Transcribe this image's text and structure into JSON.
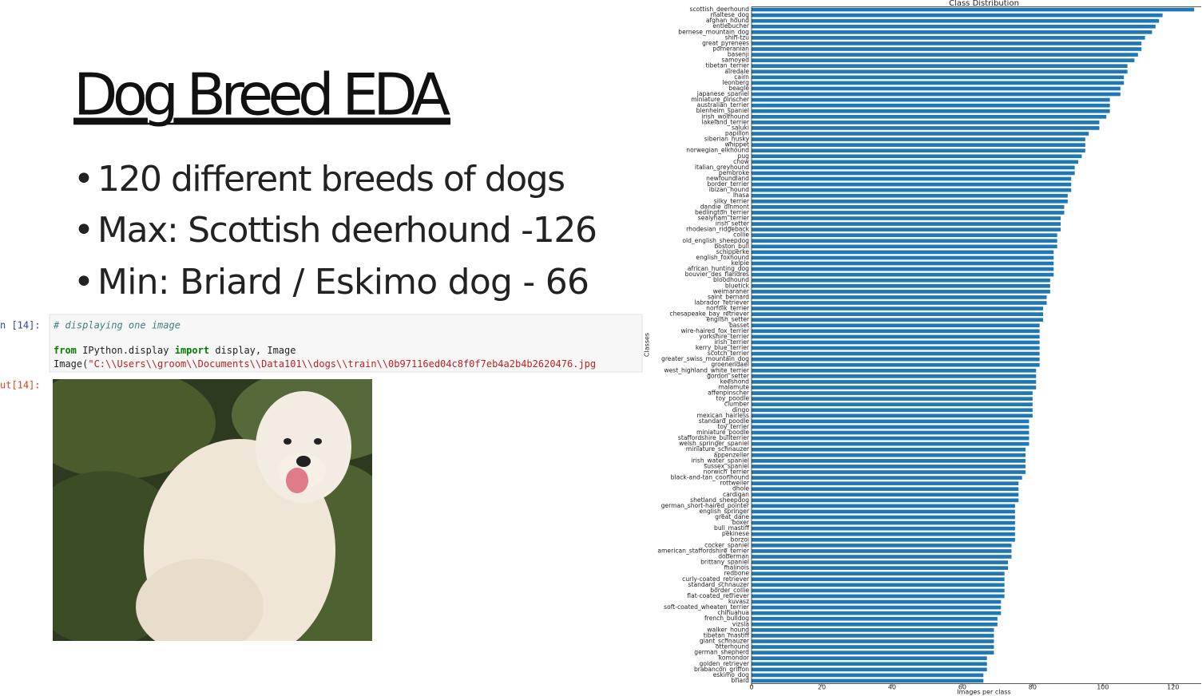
{
  "slide": {
    "title": "Dog Breed EDA",
    "bullets": [
      "120 different breeds of dogs",
      "Max: Scottish deerhound -126",
      "Min: Briard / Eskimo dog - 66"
    ]
  },
  "notebook": {
    "in_prompt": "n [14]:",
    "out_prompt": "ut[14]:",
    "comment": "# displaying one image",
    "line1": [
      "from",
      " IPython.display ",
      "import",
      " display, Image"
    ],
    "line2": [
      "Image(",
      "\"C:\\\\Users\\\\groom\\\\Documents\\\\Data101\\\\dogs\\\\train\\\\0b97116ed04c8f0f7eb4a2b4b2620476.jpg"
    ]
  },
  "chart_data": {
    "type": "barh",
    "title": "Class Distribution",
    "x_label": "Images per class",
    "y_label": "Classes",
    "color": "#1f77b4",
    "xlim": [
      0,
      128
    ],
    "xticks": [
      0,
      20,
      40,
      60,
      80,
      100,
      120
    ],
    "grid": false,
    "categories": [
      "scottish_deerhound",
      "maltese_dog",
      "afghan_hound",
      "entlebucher",
      "bernese_mountain_dog",
      "shih-tzu",
      "great_pyrenees",
      "pomeranian",
      "basenji",
      "samoyed",
      "tibetan_terrier",
      "airedale",
      "cairn",
      "leonberg",
      "beagle",
      "japanese_spaniel",
      "miniature_pinscher",
      "australian_terrier",
      "blenheim_spaniel",
      "irish_wolfhound",
      "lakeland_terrier",
      "saluki",
      "papillon",
      "siberian_husky",
      "whippet",
      "norwegian_elkhound",
      "pug",
      "chow",
      "italian_greyhound",
      "pembroke",
      "newfoundland",
      "border_terrier",
      "ibizan_hound",
      "lhasa",
      "silky_terrier",
      "dandie_dinmont",
      "bedlington_terrier",
      "sealyham_terrier",
      "irish_setter",
      "rhodesian_ridgeback",
      "collie",
      "old_english_sheepdog",
      "boston_bull",
      "schipperke",
      "english_foxhound",
      "kelpie",
      "african_hunting_dog",
      "bouvier_des_flandres",
      "bloodhound",
      "bluetick",
      "weimaraner",
      "saint_bernard",
      "labrador_retriever",
      "norfolk_terrier",
      "chesapeake_bay_retriever",
      "english_setter",
      "basset",
      "wire-haired_fox_terrier",
      "yorkshire_terrier",
      "irish_terrier",
      "kerry_blue_terrier",
      "scotch_terrier",
      "greater_swiss_mountain_dog",
      "groenendael",
      "west_highland_white_terrier",
      "gordon_setter",
      "keeshond",
      "malamute",
      "affenpinscher",
      "toy_poodle",
      "clumber",
      "dingo",
      "mexican_hairless",
      "standard_poodle",
      "toy_terrier",
      "miniature_poodle",
      "staffordshire_bullterrier",
      "welsh_springer_spaniel",
      "miniature_schnauzer",
      "appenzeller",
      "irish_water_spaniel",
      "sussex_spaniel",
      "norwich_terrier",
      "black-and-tan_coonhound",
      "rottweiler",
      "dhole",
      "cardigan",
      "shetland_sheepdog",
      "german_short-haired_pointer",
      "english_springer",
      "great_dane",
      "boxer",
      "bull_mastiff",
      "pekinese",
      "borzoi",
      "cocker_spaniel",
      "american_staffordshire_terrier",
      "doberman",
      "brittany_spaniel",
      "malinois",
      "redbone",
      "curly-coated_retriever",
      "standard_schnauzer",
      "border_collie",
      "flat-coated_retriever",
      "kuvasz",
      "soft-coated_wheaten_terrier",
      "chihuahua",
      "french_bulldog",
      "vizsla",
      "walker_hound",
      "tibetan_mastiff",
      "giant_schnauzer",
      "otterhound",
      "german_shepherd",
      "komondor",
      "golden_retriever",
      "brabancon_griffon",
      "eskimo_dog",
      "briard"
    ],
    "values": [
      126,
      117,
      116,
      115,
      114,
      112,
      111,
      111,
      110,
      109,
      107,
      107,
      106,
      106,
      105,
      105,
      102,
      102,
      102,
      101,
      99,
      99,
      96,
      95,
      95,
      95,
      94,
      93,
      92,
      92,
      91,
      91,
      91,
      90,
      90,
      89,
      89,
      88,
      88,
      88,
      87,
      87,
      87,
      86,
      86,
      86,
      86,
      86,
      85,
      85,
      85,
      84,
      84,
      83,
      83,
      83,
      82,
      82,
      82,
      82,
      82,
      82,
      82,
      82,
      81,
      81,
      81,
      81,
      80,
      80,
      80,
      80,
      80,
      79,
      79,
      79,
      79,
      79,
      78,
      78,
      78,
      78,
      78,
      77,
      76,
      76,
      76,
      76,
      75,
      75,
      75,
      75,
      75,
      75,
      75,
      74,
      74,
      74,
      73,
      73,
      72,
      72,
      72,
      72,
      72,
      71,
      71,
      71,
      70,
      70,
      69,
      69,
      69,
      69,
      69,
      67,
      67,
      67,
      66,
      66
    ]
  }
}
